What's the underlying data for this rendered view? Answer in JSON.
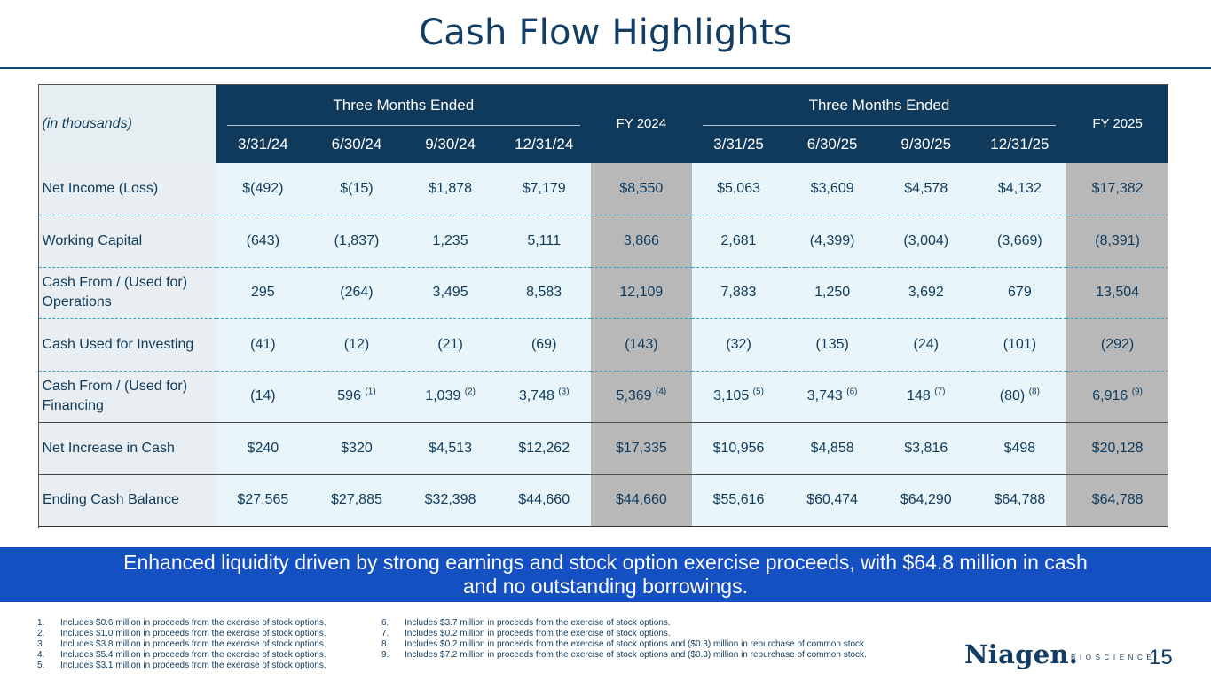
{
  "title": "Cash Flow Highlights",
  "table": {
    "units_label": "(in thousands)",
    "group_2024": "Three Months Ended",
    "group_2025": "Three Months Ended",
    "fy2024": "FY 2024",
    "fy2025": "FY 2025",
    "periods_2024": [
      "3/31/24",
      "6/30/24",
      "9/30/24",
      "12/31/24"
    ],
    "periods_2025": [
      "3/31/25",
      "6/30/25",
      "9/30/25",
      "12/31/25"
    ],
    "rows": [
      {
        "label": "Net Income (Loss)",
        "values": [
          "$(492)",
          "$(15)",
          "$1,878",
          "$7,179",
          "$8,550",
          "$5,063",
          "$3,609",
          "$4,578",
          "$4,132",
          "$17,382"
        ]
      },
      {
        "label": "Working Capital",
        "values": [
          "(643)",
          "(1,837)",
          "1,235",
          "5,111",
          "3,866",
          "2,681",
          "(4,399)",
          "(3,004)",
          "(3,669)",
          "(8,391)"
        ]
      },
      {
        "label": "Cash From / (Used for) Operations",
        "values": [
          "295",
          "(264)",
          "3,495",
          "8,583",
          "12,109",
          "7,883",
          "1,250",
          "3,692",
          "679",
          "13,504"
        ]
      },
      {
        "label": "Cash Used for Investing",
        "values": [
          "(41)",
          "(12)",
          "(21)",
          "(69)",
          "(143)",
          "(32)",
          "(135)",
          "(24)",
          "(101)",
          "(292)"
        ]
      },
      {
        "label": "Cash From / (Used for) Financing",
        "values": [
          "(14)",
          "596",
          "1,039",
          "3,748",
          "5,369",
          "3,105",
          "3,743",
          "148",
          "(80)",
          "6,916"
        ],
        "footnote_refs": [
          "",
          "(1)",
          "(2)",
          "(3)",
          "(4)",
          "(5)",
          "(6)",
          "(7)",
          "(8)",
          "(9)"
        ]
      },
      {
        "label": "Net Increase in Cash",
        "values": [
          "$240",
          "$320",
          "$4,513",
          "$12,262",
          "$17,335",
          "$10,956",
          "$4,858",
          "$3,816",
          "$498",
          "$20,128"
        ]
      },
      {
        "label": "Ending Cash Balance",
        "values": [
          "$27,565",
          "$27,885",
          "$32,398",
          "$44,660",
          "$44,660",
          "$55,616",
          "$60,474",
          "$64,290",
          "$64,788",
          "$64,788"
        ]
      }
    ]
  },
  "banner": {
    "line1": "Enhanced liquidity driven by strong earnings and stock option exercise proceeds, with $64.8 million in cash",
    "line2": "and no outstanding borrowings."
  },
  "footnotes_left": [
    {
      "num": "1.",
      "text": "Includes $0.6 million in proceeds from the exercise of stock options."
    },
    {
      "num": "2.",
      "text": "Includes $1.0 million in proceeds from the exercise of stock options."
    },
    {
      "num": "3.",
      "text": "Includes $3.8 million in proceeds from the exercise of stock options."
    },
    {
      "num": "4.",
      "text": "Includes $5.4 million in proceeds from the exercise of stock options."
    },
    {
      "num": "5.",
      "text": "Includes $3.1 million in proceeds from the exercise of stock options."
    }
  ],
  "footnotes_right": [
    {
      "num": "6.",
      "text": "Includes $3.7 million in proceeds from the exercise of stock options."
    },
    {
      "num": "7.",
      "text": "Includes $0.2 million in proceeds from the exercise of stock options."
    },
    {
      "num": "8.",
      "text": "Includes $0.2 million in proceeds from the exercise of stock options and ($0.3) million in repurchase of common stock"
    },
    {
      "num": "9.",
      "text": "Includes $7.2 million in proceeds from the exercise of stock options and ($0.3) million in repurchase of common stock."
    }
  ],
  "logo": {
    "name": "Niagen.",
    "sub": "BIOSCIENCE"
  },
  "page_number": "15",
  "colors": {
    "navy": "#0f3a5c",
    "banner_blue": "#1450c2",
    "fy_gray": "#b8b8b8",
    "row_tint": "#e8f6fb",
    "dash_teal": "#34a6c2"
  }
}
